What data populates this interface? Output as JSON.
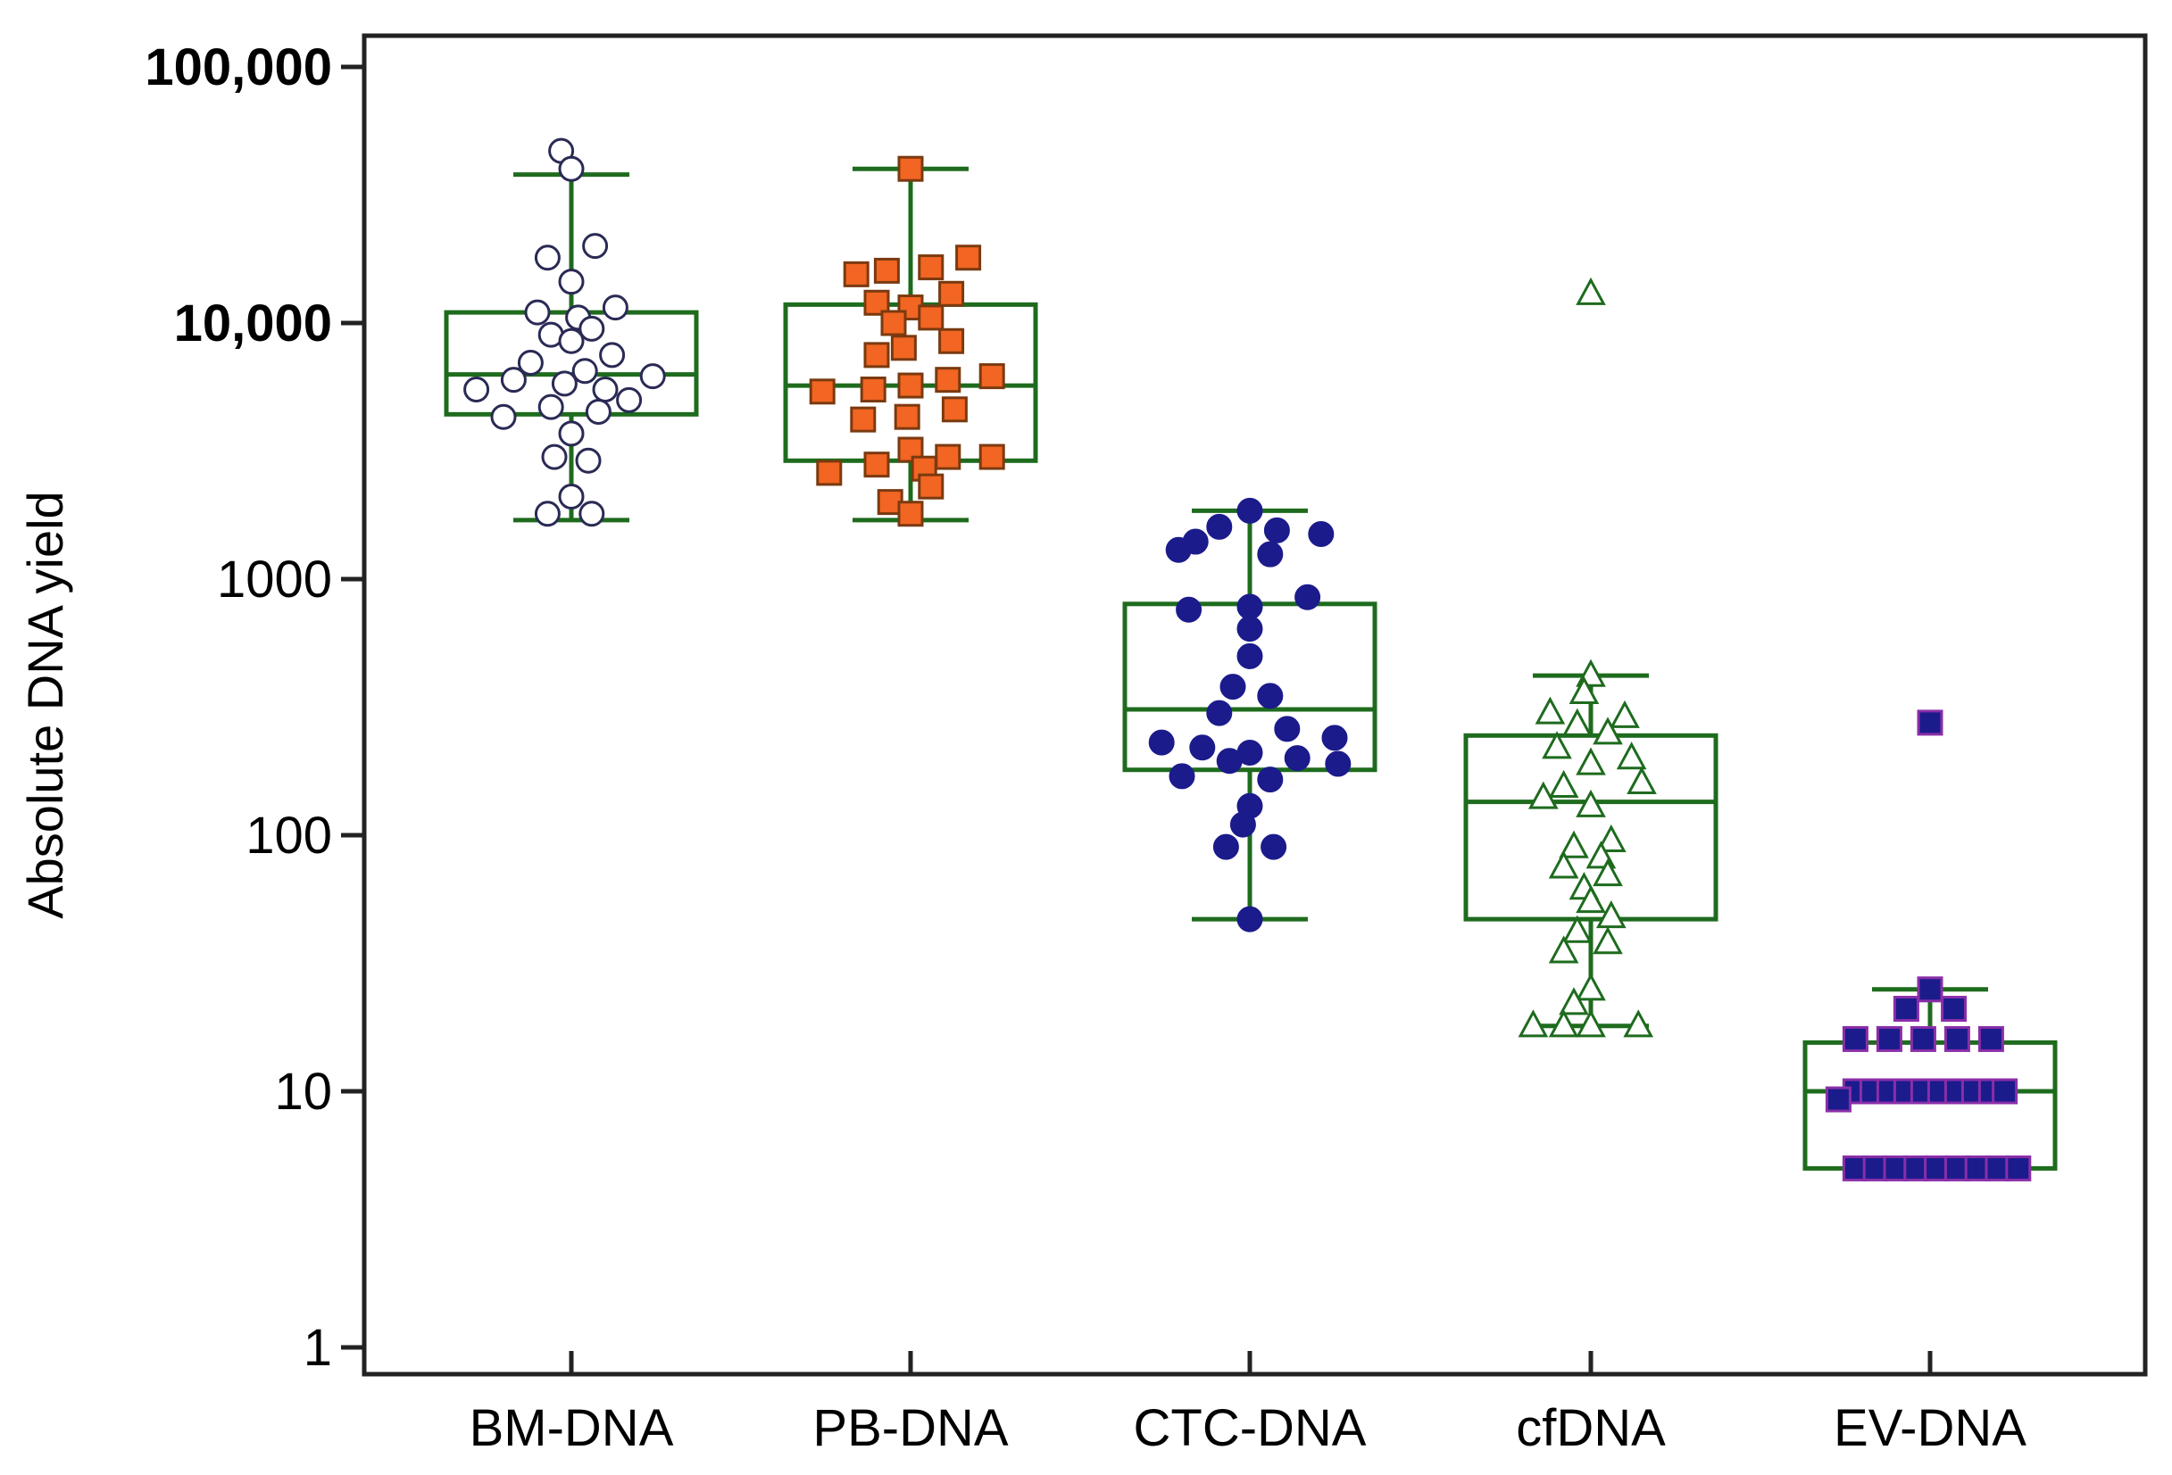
{
  "chart_data": {
    "type": "boxplot",
    "title": "",
    "xlabel": "",
    "ylabel": "Absolute DNA yield",
    "yscale": "log",
    "ylim": [
      1,
      100000
    ],
    "y_ticks": [
      {
        "value": 100000,
        "label": "100,000"
      },
      {
        "value": 10000,
        "label": "10,000"
      },
      {
        "value": 1000,
        "label": "1000"
      },
      {
        "value": 100,
        "label": "100"
      },
      {
        "value": 10,
        "label": "10"
      },
      {
        "value": 1,
        "label": "1"
      }
    ],
    "box_color": "#1e6b1e",
    "categories": [
      "BM-DNA",
      "PB-DNA",
      "CTC-DNA",
      "cfDNA",
      "EV-DNA"
    ],
    "groups": [
      {
        "name": "BM-DNA",
        "marker": "circle-open",
        "fill": "#ffffff",
        "stroke": "#2a2a55",
        "whisker_low": 1700,
        "q1": 4400,
        "median": 6300,
        "q3": 11000,
        "whisker_high": 38000,
        "outliers": [],
        "points": [
          {
            "v": 47000,
            "j": -0.03
          },
          {
            "v": 40000,
            "j": 0.0
          },
          {
            "v": 20000,
            "j": 0.07
          },
          {
            "v": 18000,
            "j": -0.07
          },
          {
            "v": 14500,
            "j": 0.0
          },
          {
            "v": 11500,
            "j": 0.13
          },
          {
            "v": 11000,
            "j": -0.1
          },
          {
            "v": 10500,
            "j": 0.02
          },
          {
            "v": 9500,
            "j": 0.06
          },
          {
            "v": 9000,
            "j": -0.06
          },
          {
            "v": 8500,
            "j": 0.0
          },
          {
            "v": 7500,
            "j": 0.12
          },
          {
            "v": 7000,
            "j": -0.12
          },
          {
            "v": 6500,
            "j": 0.04
          },
          {
            "v": 6200,
            "j": 0.24
          },
          {
            "v": 6000,
            "j": -0.17
          },
          {
            "v": 5800,
            "j": -0.02
          },
          {
            "v": 5500,
            "j": 0.1
          },
          {
            "v": 5500,
            "j": -0.28
          },
          {
            "v": 5000,
            "j": 0.17
          },
          {
            "v": 4700,
            "j": -0.06
          },
          {
            "v": 4500,
            "j": 0.08
          },
          {
            "v": 4300,
            "j": -0.2
          },
          {
            "v": 3700,
            "j": 0.0
          },
          {
            "v": 3000,
            "j": -0.05
          },
          {
            "v": 2900,
            "j": 0.05
          },
          {
            "v": 2100,
            "j": 0.0
          },
          {
            "v": 1800,
            "j": -0.07
          },
          {
            "v": 1800,
            "j": 0.06
          }
        ]
      },
      {
        "name": "PB-DNA",
        "marker": "square",
        "fill": "#f26522",
        "stroke": "#7a3a10",
        "whisker_low": 1700,
        "q1": 2900,
        "median": 5700,
        "q3": 11800,
        "whisker_high": 40000,
        "outliers": [],
        "points": [
          {
            "v": 40000,
            "j": 0.0
          },
          {
            "v": 18000,
            "j": 0.17
          },
          {
            "v": 16500,
            "j": 0.06
          },
          {
            "v": 16000,
            "j": -0.07
          },
          {
            "v": 15500,
            "j": -0.16
          },
          {
            "v": 13000,
            "j": 0.12
          },
          {
            "v": 12000,
            "j": -0.1
          },
          {
            "v": 11500,
            "j": 0.0
          },
          {
            "v": 10500,
            "j": 0.06
          },
          {
            "v": 10000,
            "j": -0.05
          },
          {
            "v": 8500,
            "j": 0.12
          },
          {
            "v": 8000,
            "j": -0.02
          },
          {
            "v": 7500,
            "j": -0.1
          },
          {
            "v": 6200,
            "j": 0.24
          },
          {
            "v": 6000,
            "j": 0.11
          },
          {
            "v": 5700,
            "j": 0.0
          },
          {
            "v": 5500,
            "j": -0.11
          },
          {
            "v": 5400,
            "j": -0.26
          },
          {
            "v": 4600,
            "j": 0.13
          },
          {
            "v": 4300,
            "j": -0.01
          },
          {
            "v": 4200,
            "j": -0.14
          },
          {
            "v": 3200,
            "j": 0.0
          },
          {
            "v": 3000,
            "j": 0.11
          },
          {
            "v": 3000,
            "j": 0.24
          },
          {
            "v": 2800,
            "j": -0.1
          },
          {
            "v": 2700,
            "j": 0.04
          },
          {
            "v": 2600,
            "j": -0.24
          },
          {
            "v": 2300,
            "j": 0.06
          },
          {
            "v": 2000,
            "j": -0.06
          },
          {
            "v": 1800,
            "j": 0.0
          }
        ]
      },
      {
        "name": "CTC-DNA",
        "marker": "circle",
        "fill": "#1b1b8c",
        "stroke": "#1b1b8c",
        "whisker_low": 47,
        "q1": 180,
        "median": 310,
        "q3": 800,
        "whisker_high": 1850,
        "outliers": [],
        "points": [
          {
            "v": 1850,
            "j": 0.0
          },
          {
            "v": 1600,
            "j": -0.09
          },
          {
            "v": 1550,
            "j": 0.08
          },
          {
            "v": 1500,
            "j": 0.21
          },
          {
            "v": 1400,
            "j": -0.16
          },
          {
            "v": 1300,
            "j": -0.21
          },
          {
            "v": 1250,
            "j": 0.06
          },
          {
            "v": 850,
            "j": 0.17
          },
          {
            "v": 780,
            "j": 0.0
          },
          {
            "v": 760,
            "j": -0.18
          },
          {
            "v": 640,
            "j": 0.0
          },
          {
            "v": 500,
            "j": 0.0
          },
          {
            "v": 380,
            "j": -0.05
          },
          {
            "v": 350,
            "j": 0.06
          },
          {
            "v": 300,
            "j": -0.09
          },
          {
            "v": 260,
            "j": 0.11
          },
          {
            "v": 240,
            "j": 0.25
          },
          {
            "v": 230,
            "j": -0.26
          },
          {
            "v": 220,
            "j": -0.14
          },
          {
            "v": 210,
            "j": 0.0
          },
          {
            "v": 200,
            "j": 0.14
          },
          {
            "v": 195,
            "j": -0.06
          },
          {
            "v": 190,
            "j": 0.26
          },
          {
            "v": 170,
            "j": -0.2
          },
          {
            "v": 165,
            "j": 0.06
          },
          {
            "v": 130,
            "j": 0.0
          },
          {
            "v": 110,
            "j": -0.02
          },
          {
            "v": 90,
            "j": -0.07
          },
          {
            "v": 90,
            "j": 0.07
          },
          {
            "v": 47,
            "j": 0.0
          }
        ]
      },
      {
        "name": "cfDNA",
        "marker": "triangle-open",
        "fill": "#ffffff",
        "stroke": "#1e6b1e",
        "whisker_low": 18,
        "q1": 47,
        "median": 135,
        "q3": 245,
        "whisker_high": 420,
        "outliers": [
          13000
        ],
        "points": [
          {
            "v": 420,
            "j": 0.0
          },
          {
            "v": 360,
            "j": -0.02
          },
          {
            "v": 300,
            "j": -0.12
          },
          {
            "v": 290,
            "j": 0.1
          },
          {
            "v": 270,
            "j": -0.04
          },
          {
            "v": 250,
            "j": 0.05
          },
          {
            "v": 220,
            "j": -0.1
          },
          {
            "v": 200,
            "j": 0.12
          },
          {
            "v": 190,
            "j": 0.0
          },
          {
            "v": 160,
            "j": 0.15
          },
          {
            "v": 155,
            "j": -0.08
          },
          {
            "v": 140,
            "j": -0.14
          },
          {
            "v": 130,
            "j": 0.0
          },
          {
            "v": 95,
            "j": 0.06
          },
          {
            "v": 90,
            "j": -0.05
          },
          {
            "v": 82,
            "j": 0.03
          },
          {
            "v": 75,
            "j": -0.08
          },
          {
            "v": 70,
            "j": 0.05
          },
          {
            "v": 62,
            "j": -0.02
          },
          {
            "v": 55,
            "j": 0.0
          },
          {
            "v": 48,
            "j": 0.06
          },
          {
            "v": 42,
            "j": -0.04
          },
          {
            "v": 38,
            "j": 0.05
          },
          {
            "v": 35,
            "j": -0.08
          },
          {
            "v": 25,
            "j": 0.0
          },
          {
            "v": 22,
            "j": -0.05
          },
          {
            "v": 18,
            "j": -0.17
          },
          {
            "v": 18,
            "j": 0.0
          },
          {
            "v": 18,
            "j": 0.14
          },
          {
            "v": 18,
            "j": -0.08
          }
        ]
      },
      {
        "name": "EV-DNA",
        "marker": "square",
        "fill": "#1b1b8c",
        "stroke": "#8a2ea8",
        "whisker_low": 5,
        "q1": 5,
        "median": 10,
        "q3": 15.5,
        "whisker_high": 25,
        "outliers": [
          275
        ],
        "points": [
          {
            "v": 25,
            "j": 0.0
          },
          {
            "v": 21,
            "j": -0.07
          },
          {
            "v": 21,
            "j": 0.07
          },
          {
            "v": 16,
            "j": -0.22
          },
          {
            "v": 16,
            "j": -0.12
          },
          {
            "v": 16,
            "j": -0.02
          },
          {
            "v": 16,
            "j": 0.08
          },
          {
            "v": 16,
            "j": 0.18
          },
          {
            "v": 10,
            "j": -0.22
          },
          {
            "v": 10,
            "j": -0.17
          },
          {
            "v": 10,
            "j": -0.12
          },
          {
            "v": 10,
            "j": -0.07
          },
          {
            "v": 10,
            "j": -0.02
          },
          {
            "v": 10,
            "j": 0.03
          },
          {
            "v": 10,
            "j": 0.08
          },
          {
            "v": 10,
            "j": 0.13
          },
          {
            "v": 10,
            "j": 0.18
          },
          {
            "v": 10,
            "j": 0.22
          },
          {
            "v": 9.3,
            "j": -0.27
          },
          {
            "v": 5,
            "j": -0.22
          },
          {
            "v": 5,
            "j": -0.16
          },
          {
            "v": 5,
            "j": -0.1
          },
          {
            "v": 5,
            "j": -0.04
          },
          {
            "v": 5,
            "j": 0.02
          },
          {
            "v": 5,
            "j": 0.08
          },
          {
            "v": 5,
            "j": 0.14
          },
          {
            "v": 5,
            "j": 0.2
          },
          {
            "v": 5,
            "j": 0.26
          }
        ]
      }
    ]
  }
}
